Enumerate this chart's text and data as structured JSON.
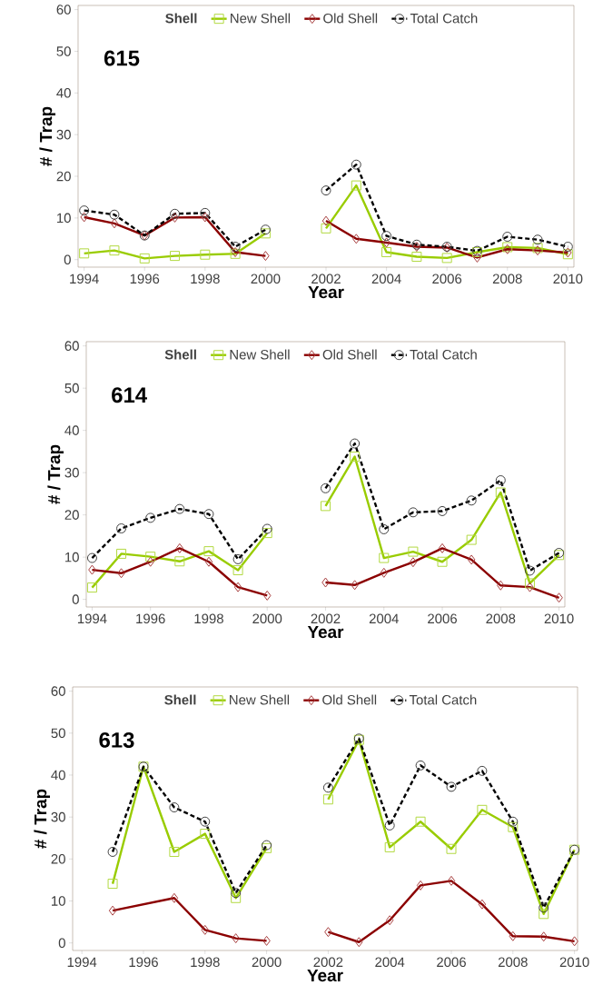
{
  "chart_data": [
    {
      "type": "line",
      "xlabel": "Year",
      "ylabel": "# / Trap",
      "legend_title": "Shell",
      "annotations": [
        "615"
      ],
      "xlim": [
        1993.8,
        2010.2
      ],
      "ylim": [
        -1.8,
        61
      ],
      "xticks": [
        1994,
        1996,
        1998,
        2000,
        2002,
        2004,
        2006,
        2008,
        2010
      ],
      "yticks": [
        0,
        10,
        20,
        30,
        40,
        50,
        60
      ],
      "legend": "top",
      "grid": false,
      "x": [
        1994,
        1995,
        1996,
        1997,
        1998,
        1999,
        2000,
        2001,
        2002,
        2003,
        2004,
        2005,
        2006,
        2007,
        2008,
        2009,
        2010
      ],
      "series": [
        {
          "name": "New Shell",
          "color": "#99cc00",
          "marker": "square",
          "line_style": "solid",
          "values": [
            1.5,
            2.2,
            0.3,
            0.9,
            1.2,
            1.4,
            6.3,
            null,
            7.5,
            17.8,
            1.8,
            0.7,
            0.4,
            1.8,
            3.0,
            2.8,
            1.3
          ]
        },
        {
          "name": "Old Shell",
          "color": "#8b0000",
          "marker": "diamond",
          "line_style": "solid",
          "values": [
            10.2,
            8.7,
            5.8,
            10.1,
            10.2,
            1.8,
            0.9,
            null,
            9.3,
            5.0,
            4.1,
            3.1,
            2.9,
            0.5,
            2.5,
            2.2,
            1.7
          ]
        },
        {
          "name": "Total Catch",
          "color": "#000000",
          "marker": "circle",
          "line_style": "dashed",
          "values": [
            11.8,
            10.8,
            5.8,
            11.0,
            11.2,
            3.1,
            7.2,
            null,
            16.6,
            22.8,
            5.7,
            3.6,
            3.1,
            2.1,
            5.5,
            4.8,
            3.1
          ]
        }
      ]
    },
    {
      "type": "line",
      "xlabel": "Year",
      "ylabel": "# / Trap",
      "legend_title": "Shell",
      "annotations": [
        "614"
      ],
      "xlim": [
        1993.8,
        2010.2
      ],
      "ylim": [
        -1.8,
        61
      ],
      "xticks": [
        1994,
        1996,
        1998,
        2000,
        2002,
        2004,
        2006,
        2008,
        2010
      ],
      "yticks": [
        0,
        10,
        20,
        30,
        40,
        50,
        60
      ],
      "legend": "top",
      "grid": false,
      "x": [
        1994,
        1995,
        1996,
        1997,
        1998,
        1999,
        2000,
        2001,
        2002,
        2003,
        2004,
        2005,
        2006,
        2007,
        2008,
        2009,
        2010
      ],
      "series": [
        {
          "name": "New Shell",
          "color": "#99cc00",
          "marker": "square",
          "line_style": "solid",
          "values": [
            2.8,
            10.8,
            10.1,
            9.0,
            11.4,
            6.9,
            15.7,
            null,
            22.1,
            33.8,
            9.8,
            11.3,
            8.9,
            14.1,
            25.3,
            3.8,
            10.5
          ]
        },
        {
          "name": "Old Shell",
          "color": "#8b0000",
          "marker": "diamond",
          "line_style": "solid",
          "values": [
            7.0,
            6.2,
            8.9,
            12.1,
            8.9,
            2.9,
            0.9,
            null,
            4.0,
            3.4,
            6.3,
            8.8,
            12.1,
            9.4,
            3.3,
            2.9,
            0.4
          ]
        },
        {
          "name": "Total Catch",
          "color": "#000000",
          "marker": "circle",
          "line_style": "dashed",
          "values": [
            9.8,
            16.8,
            19.3,
            21.4,
            20.2,
            9.5,
            16.7,
            null,
            26.3,
            36.9,
            16.6,
            20.6,
            20.9,
            23.4,
            28.2,
            6.8,
            11.0
          ]
        }
      ]
    },
    {
      "type": "line",
      "xlabel": "Year",
      "ylabel": "# / Trap",
      "legend_title": "Shell",
      "annotations": [
        "613"
      ],
      "xlim": [
        1993.7,
        2010.1
      ],
      "ylim": [
        -1.8,
        61
      ],
      "xticks": [
        1994,
        1996,
        1998,
        2000,
        2002,
        2004,
        2006,
        2008,
        2010
      ],
      "yticks": [
        0,
        10,
        20,
        30,
        40,
        50,
        60
      ],
      "legend": "top",
      "grid": false,
      "x": [
        1995,
        1996,
        1997,
        1998,
        1999,
        2000,
        2001,
        2002,
        2003,
        2004,
        2005,
        2006,
        2007,
        2008,
        2009,
        2010
      ],
      "series": [
        {
          "name": "New Shell",
          "color": "#99cc00",
          "marker": "square",
          "line_style": "solid",
          "values": [
            14.1,
            42.0,
            21.7,
            26.0,
            10.7,
            22.6,
            null,
            34.2,
            48.4,
            22.8,
            28.9,
            22.4,
            31.7,
            27.6,
            6.9,
            22.2
          ]
        },
        {
          "name": "Old Shell",
          "color": "#8b0000",
          "marker": "diamond",
          "line_style": "solid",
          "x": [
            1995,
            1997,
            1998,
            1999,
            2000,
            2001,
            2002,
            2003,
            2004,
            2005,
            2006,
            2007,
            2008,
            2009,
            2010
          ],
          "values": [
            7.7,
            10.7,
            3.1,
            1.1,
            0.5,
            null,
            2.6,
            0.2,
            5.4,
            13.7,
            14.8,
            9.2,
            1.6,
            1.5,
            0.4
          ]
        },
        {
          "name": "Total Catch",
          "color": "#000000",
          "marker": "circle",
          "line_style": "dashed",
          "values": [
            21.7,
            42.0,
            32.3,
            28.9,
            11.9,
            23.3,
            null,
            37.0,
            48.7,
            28.0,
            42.3,
            37.2,
            41.0,
            28.9,
            8.4,
            22.2
          ]
        }
      ]
    }
  ]
}
